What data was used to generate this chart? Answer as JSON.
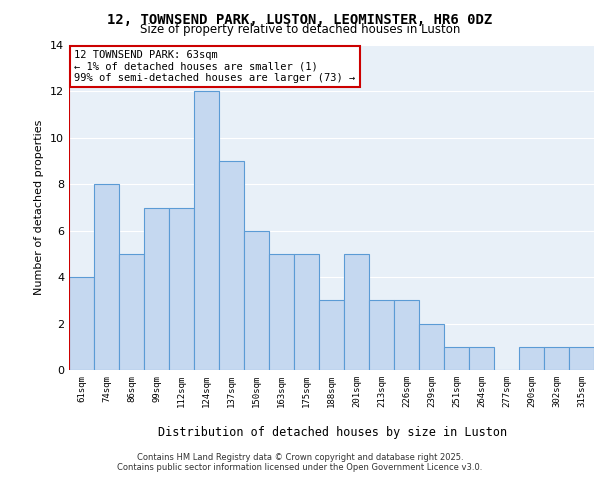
{
  "title_line1": "12, TOWNSEND PARK, LUSTON, LEOMINSTER, HR6 0DZ",
  "title_line2": "Size of property relative to detached houses in Luston",
  "xlabel": "Distribution of detached houses by size in Luston",
  "ylabel": "Number of detached properties",
  "categories": [
    "61sqm",
    "74sqm",
    "86sqm",
    "99sqm",
    "112sqm",
    "124sqm",
    "137sqm",
    "150sqm",
    "163sqm",
    "175sqm",
    "188sqm",
    "201sqm",
    "213sqm",
    "226sqm",
    "239sqm",
    "251sqm",
    "264sqm",
    "277sqm",
    "290sqm",
    "302sqm",
    "315sqm"
  ],
  "values": [
    4,
    8,
    5,
    7,
    7,
    12,
    9,
    6,
    5,
    5,
    3,
    5,
    3,
    3,
    2,
    1,
    1,
    0,
    1,
    1,
    1
  ],
  "bar_color": "#c5d8f0",
  "bar_edge_color": "#5b9bd5",
  "annotation_text": "12 TOWNSEND PARK: 63sqm\n← 1% of detached houses are smaller (1)\n99% of semi-detached houses are larger (73) →",
  "annotation_box_color": "#ffffff",
  "annotation_box_edge": "#cc0000",
  "ylim": [
    0,
    14
  ],
  "yticks": [
    0,
    2,
    4,
    6,
    8,
    10,
    12,
    14
  ],
  "background_color": "#e8f0f8",
  "grid_color": "#ffffff",
  "footer_line1": "Contains HM Land Registry data © Crown copyright and database right 2025.",
  "footer_line2": "Contains public sector information licensed under the Open Government Licence v3.0."
}
